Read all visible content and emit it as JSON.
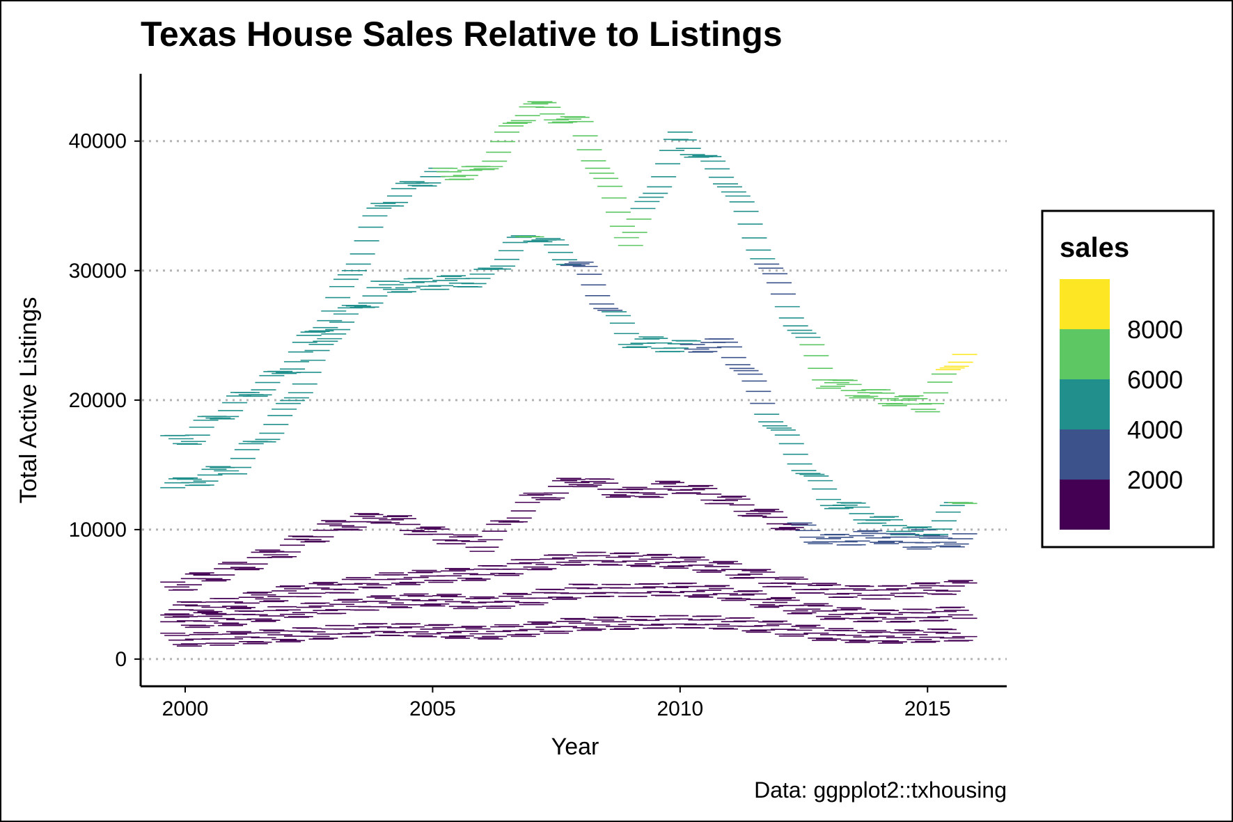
{
  "chart_data": {
    "type": "line",
    "mark": "horizontal-dash per monthly observation, colored by sales",
    "title": "Texas House Sales Relative to Listings",
    "xlabel": "Year",
    "ylabel": "Total Active Listings",
    "caption": "Data: ggpplot2::txhousing",
    "xlim": [
      1999.1,
      2016.6
    ],
    "ylim": [
      -2100,
      45200
    ],
    "x_ticks": [
      2000,
      2005,
      2010,
      2015
    ],
    "y_ticks": [
      0,
      10000,
      20000,
      30000,
      40000
    ],
    "grid": "horizontal dotted major gridlines",
    "legend": {
      "title": "sales",
      "position": "right",
      "bins": [
        {
          "min": 0,
          "max": 2000,
          "color": "#440154"
        },
        {
          "min": 2000,
          "max": 4000,
          "color": "#3B528B"
        },
        {
          "min": 4000,
          "max": 6000,
          "color": "#21908C"
        },
        {
          "min": 6000,
          "max": 8000,
          "color": "#5DC863"
        },
        {
          "min": 8000,
          "max": 10000,
          "color": "#FDE725"
        }
      ],
      "labels": [
        "8000",
        "6000",
        "4000",
        "2000"
      ]
    },
    "series": [
      {
        "points": [
          [
            2000,
            13500,
            4500
          ],
          [
            2001,
            14800,
            4800
          ],
          [
            2002,
            18800,
            5300
          ],
          [
            2003,
            25600,
            5600
          ],
          [
            2004,
            28700,
            4400
          ],
          [
            2005,
            29000,
            4600
          ],
          [
            2006,
            29300,
            4800
          ],
          [
            2007,
            33000,
            6200
          ],
          [
            2008,
            30300,
            3500
          ],
          [
            2009,
            24600,
            4300
          ],
          [
            2010,
            24100,
            4200
          ],
          [
            2011,
            24300,
            3200
          ],
          [
            2012,
            17700,
            4400
          ],
          [
            2013,
            12400,
            5000
          ],
          [
            2014,
            10700,
            4500
          ],
          [
            2015,
            9500,
            3900
          ],
          [
            2015.75,
            12300,
            6300
          ]
        ]
      },
      {
        "points": [
          [
            2000,
            16800,
            4200
          ],
          [
            2001,
            19700,
            4700
          ],
          [
            2002,
            22100,
            4900
          ],
          [
            2003,
            26900,
            4800
          ],
          [
            2004,
            35100,
            5100
          ],
          [
            2005,
            37400,
            5900
          ],
          [
            2006,
            37600,
            6400
          ],
          [
            2007,
            42900,
            6400
          ],
          [
            2008,
            41200,
            6300
          ],
          [
            2009,
            32300,
            6600
          ],
          [
            2010,
            40300,
            4100
          ],
          [
            2011,
            36900,
            5200
          ],
          [
            2012,
            28600,
            3400
          ],
          [
            2013,
            21400,
            7600
          ],
          [
            2014,
            20300,
            8000
          ],
          [
            2015,
            19600,
            6200
          ],
          [
            2015.75,
            23900,
            9500
          ]
        ]
      },
      {
        "points": [
          [
            2000,
            5800,
            1200
          ],
          [
            2001,
            7000,
            1300
          ],
          [
            2002,
            8400,
            1500
          ],
          [
            2003,
            10200,
            1700
          ],
          [
            2004,
            11000,
            1900
          ],
          [
            2005,
            9700,
            1700
          ],
          [
            2006,
            8800,
            1600
          ],
          [
            2007,
            12200,
            1800
          ],
          [
            2008,
            13900,
            1900
          ],
          [
            2009,
            12700,
            1700
          ],
          [
            2010,
            13400,
            1700
          ],
          [
            2011,
            12200,
            1500
          ],
          [
            2012,
            10700,
            1600
          ],
          [
            2013,
            9100,
            2600
          ],
          [
            2014,
            9500,
            2800
          ],
          [
            2015,
            8900,
            2700
          ],
          [
            2015.75,
            9300,
            3200
          ]
        ]
      },
      {
        "points": [
          [
            2000,
            3900,
            700
          ],
          [
            2001,
            4300,
            800
          ],
          [
            2002,
            5100,
            900
          ],
          [
            2003,
            5500,
            900
          ],
          [
            2004,
            6100,
            1000
          ],
          [
            2005,
            6400,
            1100
          ],
          [
            2006,
            6600,
            1100
          ],
          [
            2007,
            7300,
            1200
          ],
          [
            2008,
            7800,
            1100
          ],
          [
            2009,
            7700,
            1000
          ],
          [
            2010,
            7500,
            900
          ],
          [
            2011,
            7000,
            900
          ],
          [
            2012,
            6000,
            1000
          ],
          [
            2013,
            5300,
            1100
          ],
          [
            2014,
            5100,
            1200
          ],
          [
            2015,
            5400,
            1300
          ],
          [
            2015.75,
            5600,
            1400
          ]
        ]
      },
      {
        "points": [
          [
            2000,
            2900,
            400
          ],
          [
            2001,
            3100,
            400
          ],
          [
            2002,
            3600,
            500
          ],
          [
            2003,
            4000,
            500
          ],
          [
            2004,
            4400,
            600
          ],
          [
            2005,
            4600,
            600
          ],
          [
            2006,
            4300,
            600
          ],
          [
            2007,
            4700,
            600
          ],
          [
            2008,
            5300,
            600
          ],
          [
            2009,
            5300,
            500
          ],
          [
            2010,
            5400,
            500
          ],
          [
            2011,
            5100,
            500
          ],
          [
            2012,
            4300,
            500
          ],
          [
            2013,
            3600,
            600
          ],
          [
            2014,
            3300,
            600
          ],
          [
            2015,
            3400,
            700
          ],
          [
            2015.75,
            3600,
            700
          ]
        ]
      },
      {
        "points": [
          [
            2000,
            1500,
            200
          ],
          [
            2001,
            1600,
            200
          ],
          [
            2002,
            1800,
            200
          ],
          [
            2003,
            2100,
            300
          ],
          [
            2004,
            2300,
            300
          ],
          [
            2005,
            2200,
            300
          ],
          [
            2006,
            2000,
            300
          ],
          [
            2007,
            2300,
            300
          ],
          [
            2008,
            2700,
            300
          ],
          [
            2009,
            2800,
            300
          ],
          [
            2010,
            2900,
            300
          ],
          [
            2011,
            2800,
            300
          ],
          [
            2012,
            2400,
            300
          ],
          [
            2013,
            1900,
            300
          ],
          [
            2014,
            1700,
            300
          ],
          [
            2015,
            1800,
            300
          ],
          [
            2015.75,
            1900,
            400
          ]
        ]
      }
    ]
  }
}
